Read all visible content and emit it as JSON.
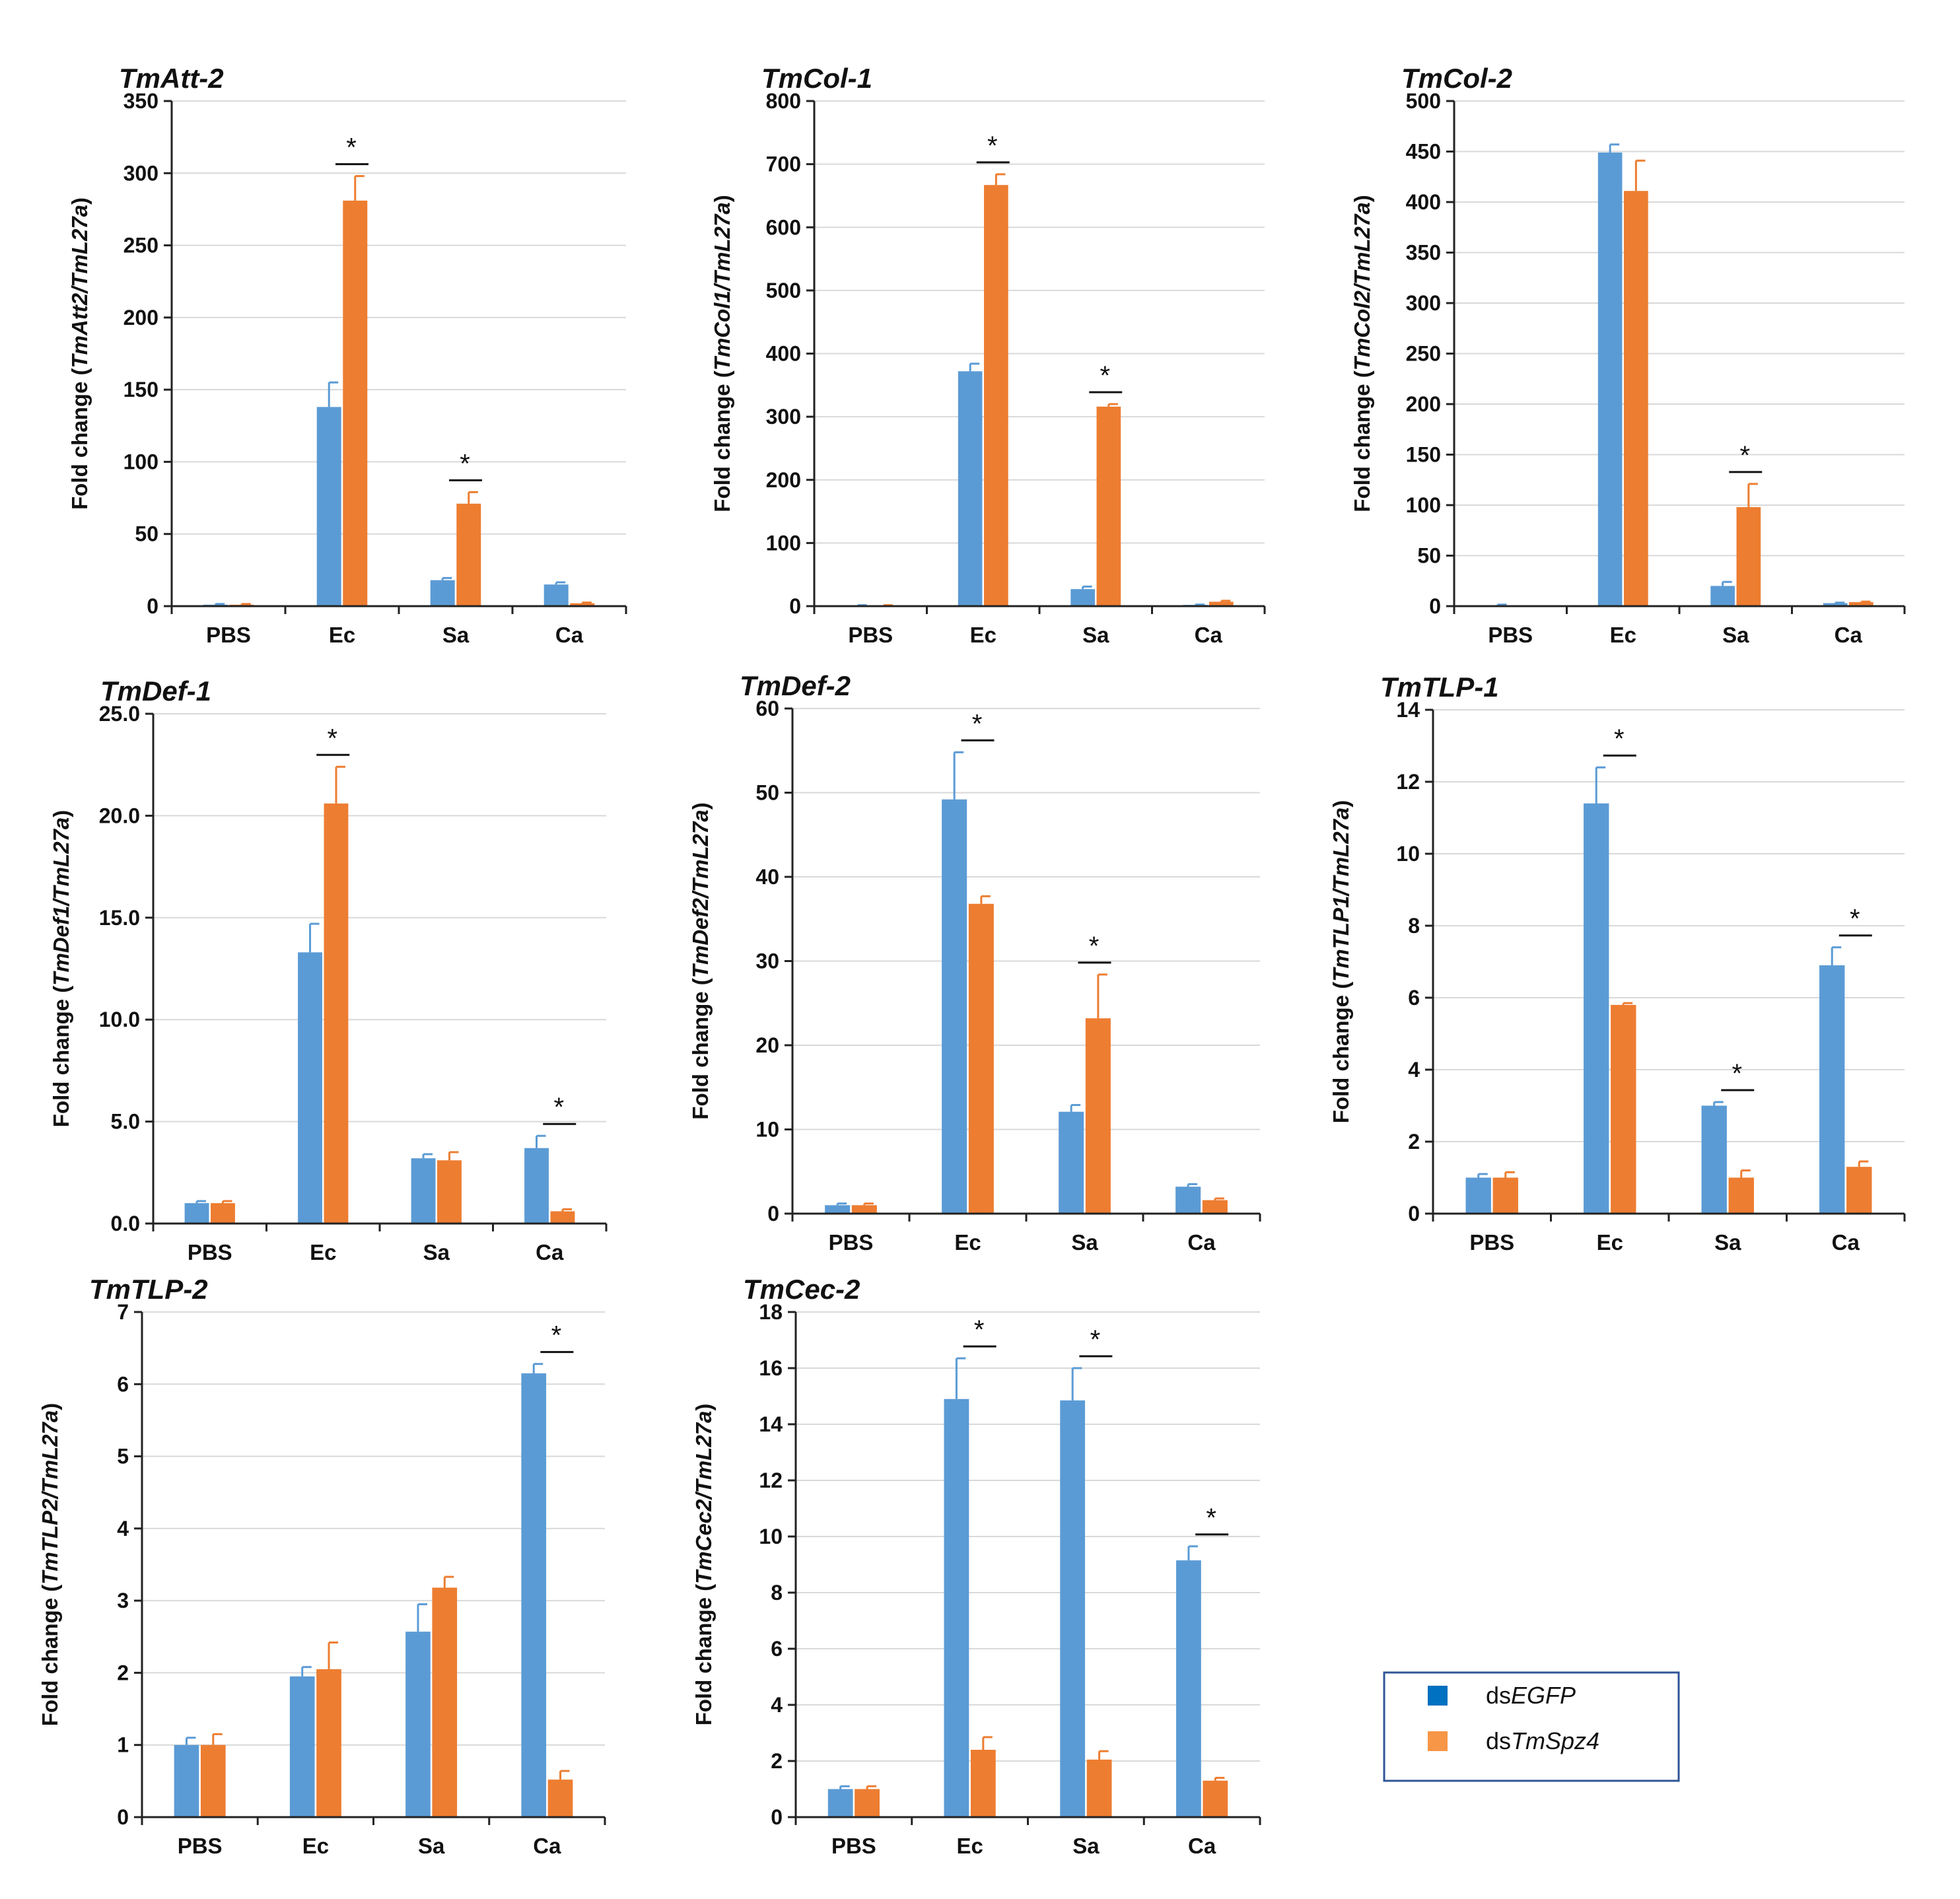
{
  "legend": {
    "items": [
      {
        "prefix": "ds",
        "name": "EGFP",
        "color": "#0070c0"
      },
      {
        "prefix": "ds",
        "name": "TmSpz4",
        "color": "#f79646"
      }
    ]
  },
  "colors": {
    "series1": "#5b9bd5",
    "series2": "#ed7d31",
    "axis": "#222222",
    "grid": "#d9d9d9"
  },
  "chart_data": [
    {
      "type": "bar",
      "title": "TmAtt-2",
      "ylabel_prefix": "Fold change (",
      "ylabel_italic": "TmAtt2/TmL27a",
      "ylabel_suffix": ")",
      "categories": [
        "PBS",
        "Ec",
        "Sa",
        "Ca"
      ],
      "ylim": [
        0,
        350
      ],
      "ticks": [
        0,
        50,
        100,
        150,
        200,
        250,
        300,
        350
      ],
      "tick_decimals": 0,
      "series": [
        {
          "name": "dsEGFP",
          "values": [
            1,
            138,
            18,
            15
          ],
          "errors": [
            0.5,
            17,
            1.5,
            1.5
          ]
        },
        {
          "name": "dsTmSpz4",
          "values": [
            1,
            281,
            71,
            2
          ],
          "errors": [
            0.5,
            17,
            8,
            0.5
          ]
        }
      ],
      "significance": [
        {
          "category": "Ec",
          "label": "*"
        },
        {
          "category": "Sa",
          "label": "*"
        }
      ]
    },
    {
      "type": "bar",
      "title": "TmCol-1",
      "ylabel_prefix": "Fold change (",
      "ylabel_italic": "TmCol1/TmL27a",
      "ylabel_suffix": ")",
      "categories": [
        "PBS",
        "Ec",
        "Sa",
        "Ca"
      ],
      "ylim": [
        0,
        800
      ],
      "ticks": [
        0,
        100,
        200,
        300,
        400,
        500,
        600,
        700,
        800
      ],
      "tick_decimals": 0,
      "series": [
        {
          "name": "dsEGFP",
          "values": [
            1,
            372,
            27,
            2
          ],
          "errors": [
            0.5,
            12,
            4,
            0.5
          ]
        },
        {
          "name": "dsTmSpz4",
          "values": [
            1,
            667,
            316,
            7
          ],
          "errors": [
            0.5,
            17,
            4,
            1.5
          ]
        }
      ],
      "significance": [
        {
          "category": "Ec",
          "label": "*"
        },
        {
          "category": "Sa",
          "label": "*"
        }
      ]
    },
    {
      "type": "bar",
      "title": "TmCol-2",
      "ylabel_prefix": "Fold change (",
      "ylabel_italic": "TmCol2/TmL27a",
      "ylabel_suffix": ")",
      "categories": [
        "PBS",
        "Ec",
        "Sa",
        "Ca"
      ],
      "ylim": [
        0,
        500
      ],
      "ticks": [
        0,
        50,
        100,
        150,
        200,
        250,
        300,
        350,
        400,
        450,
        500
      ],
      "tick_decimals": 0,
      "series": [
        {
          "name": "dsEGFP",
          "values": [
            1,
            449,
            20,
            3
          ],
          "errors": [
            0.5,
            8,
            4,
            0.5
          ]
        },
        {
          "name": "dsTmSpz4",
          "values": [
            0,
            411,
            98,
            4
          ],
          "errors": [
            0,
            30,
            23,
            0.5
          ]
        }
      ],
      "significance": [
        {
          "category": "Sa",
          "label": "*"
        }
      ]
    },
    {
      "type": "bar",
      "title": "TmDef-1",
      "ylabel_prefix": "Fold change (",
      "ylabel_italic": "TmDef1/TmL27a",
      "ylabel_suffix": ")",
      "categories": [
        "PBS",
        "Ec",
        "Sa",
        "Ca"
      ],
      "ylim": [
        0,
        25
      ],
      "ticks": [
        0,
        5,
        10,
        15,
        20,
        25
      ],
      "tick_decimals": 1,
      "series": [
        {
          "name": "dsEGFP",
          "values": [
            1.0,
            13.3,
            3.2,
            3.7
          ],
          "errors": [
            0.1,
            1.4,
            0.2,
            0.6
          ]
        },
        {
          "name": "dsTmSpz4",
          "values": [
            1.0,
            20.6,
            3.1,
            0.6
          ],
          "errors": [
            0.1,
            1.8,
            0.4,
            0.1
          ]
        }
      ],
      "significance": [
        {
          "category": "Ec",
          "label": "*"
        },
        {
          "category": "Ca",
          "label": "*"
        }
      ]
    },
    {
      "type": "bar",
      "title": "TmDef-2",
      "ylabel_prefix": "Fold change (",
      "ylabel_italic": "TmDef2/TmL27a",
      "ylabel_suffix": ")",
      "categories": [
        "PBS",
        "Ec",
        "Sa",
        "Ca"
      ],
      "ylim": [
        0,
        60
      ],
      "ticks": [
        0,
        10,
        20,
        30,
        40,
        50,
        60
      ],
      "tick_decimals": 0,
      "series": [
        {
          "name": "dsEGFP",
          "values": [
            1,
            49.2,
            12.1,
            3.2
          ],
          "errors": [
            0.2,
            5.6,
            0.8,
            0.3
          ]
        },
        {
          "name": "dsTmSpz4",
          "values": [
            1,
            36.8,
            23.2,
            1.6
          ],
          "errors": [
            0.2,
            0.9,
            5.2,
            0.2
          ]
        }
      ],
      "significance": [
        {
          "category": "Ec",
          "label": "*"
        },
        {
          "category": "Sa",
          "label": "*"
        }
      ]
    },
    {
      "type": "bar",
      "title": "TmTLP-1",
      "ylabel_prefix": "Fold change (",
      "ylabel_italic": "TmTLP1/TmL27a",
      "ylabel_suffix": ")",
      "categories": [
        "PBS",
        "Ec",
        "Sa",
        "Ca"
      ],
      "ylim": [
        0,
        14
      ],
      "ticks": [
        0,
        2,
        4,
        6,
        8,
        10,
        12,
        14
      ],
      "tick_decimals": 0,
      "series": [
        {
          "name": "dsEGFP",
          "values": [
            1.0,
            11.4,
            3.0,
            6.9
          ],
          "errors": [
            0.1,
            1.0,
            0.1,
            0.5
          ]
        },
        {
          "name": "dsTmSpz4",
          "values": [
            1.0,
            5.8,
            1.0,
            1.3
          ],
          "errors": [
            0.15,
            0.05,
            0.2,
            0.15
          ]
        }
      ],
      "significance": [
        {
          "category": "Ec",
          "label": "*"
        },
        {
          "category": "Sa",
          "label": "*"
        },
        {
          "category": "Ca",
          "label": "*"
        }
      ]
    },
    {
      "type": "bar",
      "title": "TmTLP-2",
      "ylabel_prefix": "Fold change (",
      "ylabel_italic": "TmTLP2/TmL27a",
      "ylabel_suffix": ")",
      "categories": [
        "PBS",
        "Ec",
        "Sa",
        "Ca"
      ],
      "ylim": [
        0,
        7
      ],
      "ticks": [
        0,
        1,
        2,
        3,
        4,
        5,
        6,
        7
      ],
      "tick_decimals": 0,
      "series": [
        {
          "name": "dsEGFP",
          "values": [
            1.0,
            1.95,
            2.57,
            6.15
          ],
          "errors": [
            0.1,
            0.13,
            0.38,
            0.13
          ]
        },
        {
          "name": "dsTmSpz4",
          "values": [
            1.0,
            2.05,
            3.18,
            0.52
          ],
          "errors": [
            0.15,
            0.37,
            0.15,
            0.12
          ]
        }
      ],
      "significance": [
        {
          "category": "Ca",
          "label": "*"
        }
      ]
    },
    {
      "type": "bar",
      "title": "TmCec-2",
      "ylabel_prefix": "Fold change (",
      "ylabel_italic": "TmCec2/TmL27a",
      "ylabel_suffix": ")",
      "categories": [
        "PBS",
        "Ec",
        "Sa",
        "Ca"
      ],
      "ylim": [
        0,
        18
      ],
      "ticks": [
        0,
        2,
        4,
        6,
        8,
        10,
        12,
        14,
        16,
        18
      ],
      "tick_decimals": 0,
      "series": [
        {
          "name": "dsEGFP",
          "values": [
            1.0,
            14.9,
            14.85,
            9.15
          ],
          "errors": [
            0.1,
            1.45,
            1.15,
            0.5
          ]
        },
        {
          "name": "dsTmSpz4",
          "values": [
            1.0,
            2.4,
            2.05,
            1.3
          ],
          "errors": [
            0.1,
            0.45,
            0.3,
            0.1
          ]
        }
      ],
      "significance": [
        {
          "category": "Ec",
          "label": "*"
        },
        {
          "category": "Sa",
          "label": "*"
        },
        {
          "category": "Ca",
          "label": "*"
        }
      ]
    }
  ]
}
